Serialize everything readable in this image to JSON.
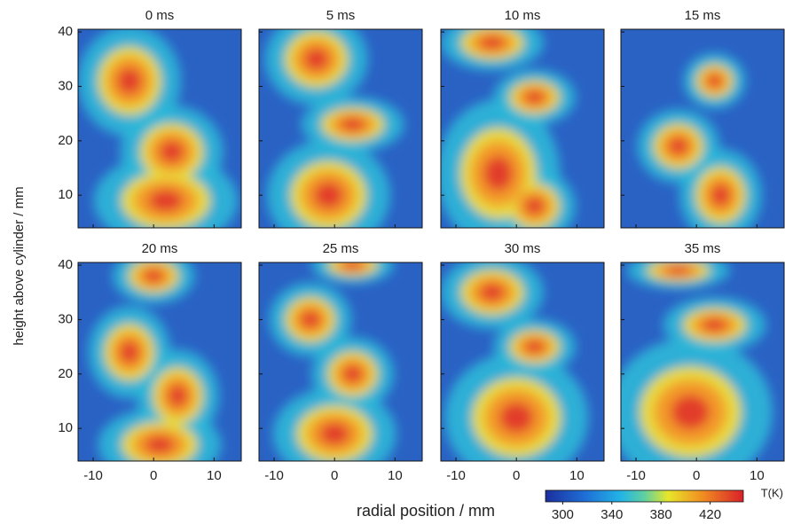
{
  "chart_data": {
    "type": "heatmap",
    "panels": [
      {
        "title": "0 ms"
      },
      {
        "title": "5 ms"
      },
      {
        "title": "10 ms"
      },
      {
        "title": "15 ms"
      },
      {
        "title": "20 ms"
      },
      {
        "title": "25 ms"
      },
      {
        "title": "30 ms"
      },
      {
        "title": "35 ms"
      }
    ],
    "xlabel": "radial position / mm",
    "ylabel": "height above cylinder / mm",
    "xlim": [
      -12.5,
      14.5
    ],
    "xticks": [
      -10,
      0,
      10
    ],
    "ylim": [
      4,
      40.5
    ],
    "yticks": [
      10,
      20,
      30,
      40
    ],
    "colorbar": {
      "label": "T(K)",
      "clim": [
        286,
        447
      ],
      "ticks": [
        300,
        340,
        380,
        420
      ]
    }
  }
}
